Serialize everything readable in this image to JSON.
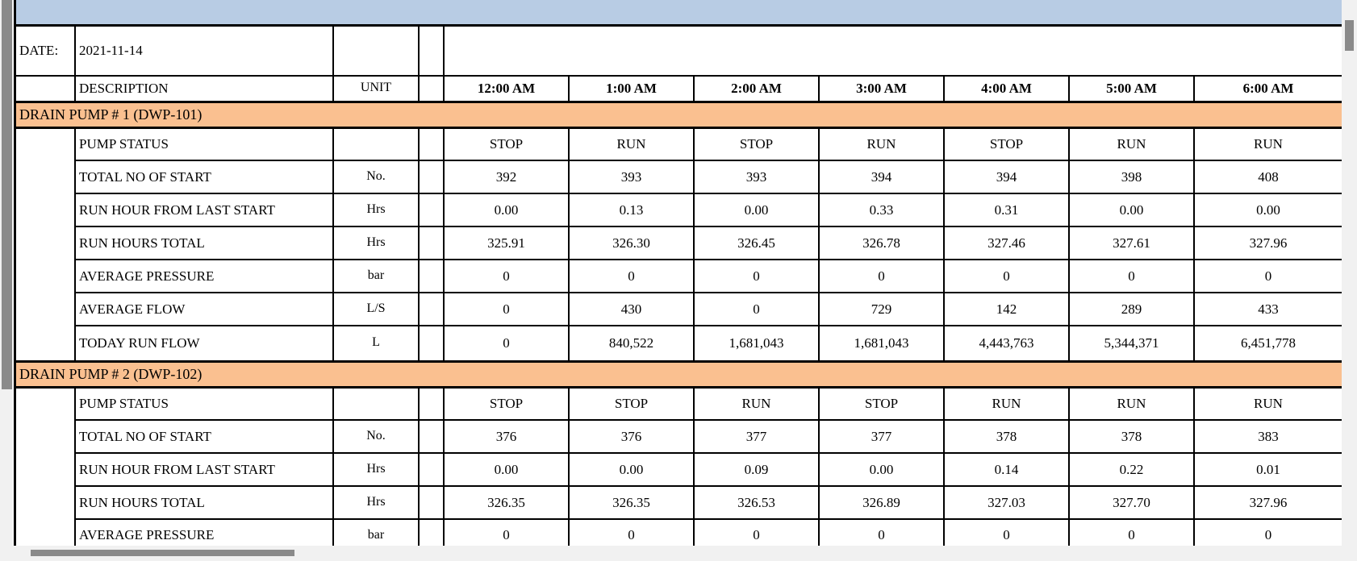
{
  "report": {
    "date_label": "DATE:",
    "date_value": "2021-11-14",
    "description_header": "DESCRIPTION",
    "unit_header": "UNIT",
    "time_headers": [
      "12:00 AM",
      "1:00 AM",
      "2:00 AM",
      "3:00 AM",
      "4:00 AM",
      "5:00 AM",
      "6:00 AM"
    ],
    "sections": [
      {
        "title": "DRAIN PUMP # 1 (DWP-101)",
        "rows": [
          {
            "label": "PUMP STATUS",
            "unit": "",
            "values": [
              "STOP",
              "RUN",
              "STOP",
              "RUN",
              "STOP",
              "RUN",
              "RUN"
            ]
          },
          {
            "label": "TOTAL NO OF START",
            "unit": "No.",
            "values": [
              "392",
              "393",
              "393",
              "394",
              "394",
              "398",
              "408"
            ]
          },
          {
            "label": "RUN HOUR FROM LAST START",
            "unit": "Hrs",
            "values": [
              "0.00",
              "0.13",
              "0.00",
              "0.33",
              "0.31",
              "0.00",
              "0.00"
            ]
          },
          {
            "label": "RUN HOURS TOTAL",
            "unit": "Hrs",
            "values": [
              "325.91",
              "326.30",
              "326.45",
              "326.78",
              "327.46",
              "327.61",
              "327.96"
            ]
          },
          {
            "label": "AVERAGE PRESSURE",
            "unit": "bar",
            "values": [
              "0",
              "0",
              "0",
              "0",
              "0",
              "0",
              "0"
            ]
          },
          {
            "label": "AVERAGE FLOW",
            "unit": "L/S",
            "values": [
              "0",
              "430",
              "0",
              "729",
              "142",
              "289",
              "433"
            ]
          },
          {
            "label": "TODAY RUN FLOW",
            "unit": "L",
            "values": [
              "0",
              "840,522",
              "1,681,043",
              "1,681,043",
              "4,443,763",
              "5,344,371",
              "6,451,778"
            ]
          }
        ]
      },
      {
        "title": "DRAIN PUMP # 2 (DWP-102)",
        "rows": [
          {
            "label": "PUMP STATUS",
            "unit": "",
            "values": [
              "STOP",
              "STOP",
              "RUN",
              "STOP",
              "RUN",
              "RUN",
              "RUN"
            ]
          },
          {
            "label": "TOTAL NO OF START",
            "unit": "No.",
            "values": [
              "376",
              "376",
              "377",
              "377",
              "378",
              "378",
              "383"
            ]
          },
          {
            "label": "RUN HOUR FROM LAST START",
            "unit": "Hrs",
            "values": [
              "0.00",
              "0.00",
              "0.09",
              "0.00",
              "0.14",
              "0.22",
              "0.01"
            ]
          },
          {
            "label": "RUN HOURS TOTAL",
            "unit": "Hrs",
            "values": [
              "326.35",
              "326.35",
              "326.53",
              "326.89",
              "327.03",
              "327.70",
              "327.96"
            ]
          },
          {
            "label": "AVERAGE PRESSURE",
            "unit": "bar",
            "values": [
              "0",
              "0",
              "0",
              "0",
              "0",
              "0",
              "0"
            ]
          }
        ]
      }
    ]
  },
  "colors": {
    "title_band": "#b8cce4",
    "section_band": "#fac090",
    "scrollbar_thumb": "#8a8a8a",
    "scrollbar_track": "#f1f1f1"
  }
}
